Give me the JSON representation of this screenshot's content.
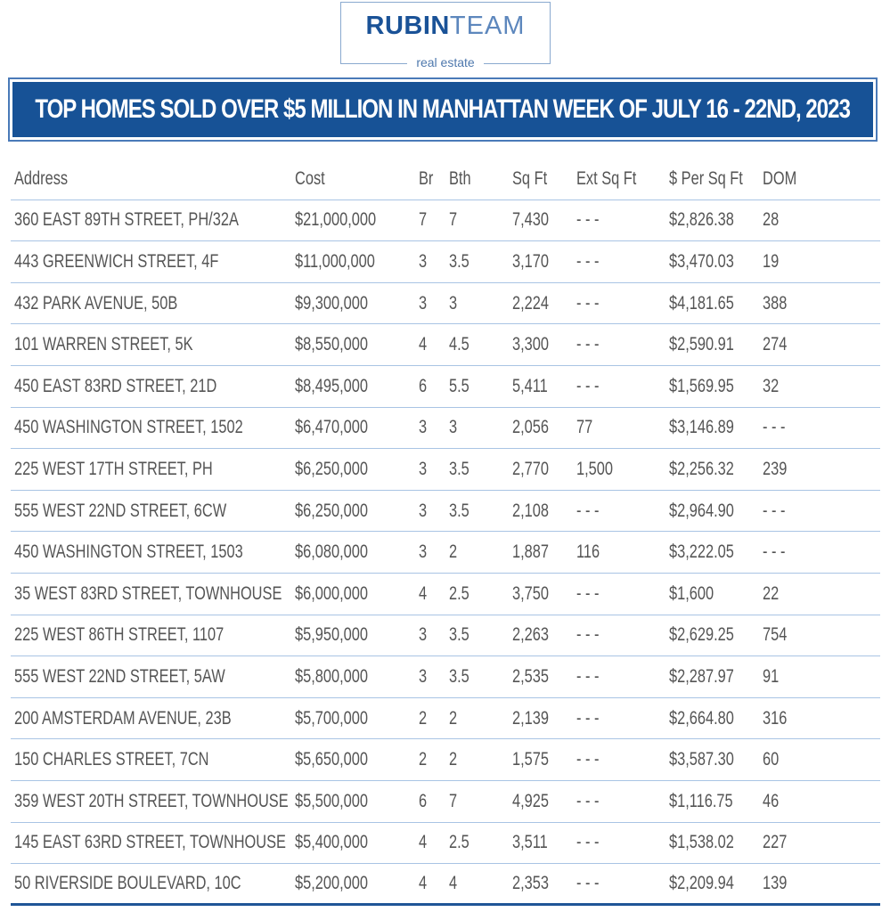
{
  "logo": {
    "brand_bold": "RUBIN",
    "brand_light": "TEAM",
    "subtitle": "real estate"
  },
  "banner": {
    "title": "TOP HOMES SOLD OVER $5 MILLION IN MANHATTAN WEEK OF JULY 16 - 22ND, 2023"
  },
  "colors": {
    "brand_blue": "#175296",
    "row_line": "#a9c4e4",
    "bottom_rule": "#1f5597",
    "text": "#555555"
  },
  "table": {
    "headers": [
      "Address",
      "Cost",
      "Br",
      "Bth",
      "Sq Ft",
      "Ext Sq Ft",
      "$ Per Sq Ft",
      "DOM"
    ],
    "rows": [
      [
        "360 EAST 89TH STREET, PH/32A",
        "$21,000,000",
        "7",
        "7",
        "7,430",
        "- - -",
        "$2,826.38",
        "28"
      ],
      [
        "443 GREENWICH STREET, 4F",
        "$11,000,000",
        "3",
        "3.5",
        "3,170",
        "- - -",
        "$3,470.03",
        "19"
      ],
      [
        "432 PARK AVENUE, 50B",
        "$9,300,000",
        "3",
        "3",
        "2,224",
        "- - -",
        "$4,181.65",
        "388"
      ],
      [
        "101 WARREN STREET, 5K",
        "$8,550,000",
        "4",
        "4.5",
        "3,300",
        "- - -",
        "$2,590.91",
        "274"
      ],
      [
        "450 EAST 83RD STREET, 21D",
        "$8,495,000",
        "6",
        "5.5",
        "5,411",
        "- - -",
        "$1,569.95",
        "32"
      ],
      [
        "450 WASHINGTON STREET, 1502",
        "$6,470,000",
        "3",
        "3",
        "2,056",
        "77",
        "$3,146.89",
        "- - -"
      ],
      [
        "225 WEST 17TH STREET, PH",
        "$6,250,000",
        "3",
        "3.5",
        "2,770",
        "1,500",
        "$2,256.32",
        "239"
      ],
      [
        "555 WEST 22ND STREET, 6CW",
        "$6,250,000",
        "3",
        "3.5",
        "2,108",
        "- - -",
        "$2,964.90",
        "- - -"
      ],
      [
        "450 WASHINGTON STREET, 1503",
        "$6,080,000",
        "3",
        "2",
        "1,887",
        "116",
        "$3,222.05",
        "- - -"
      ],
      [
        "35 WEST 83RD STREET, TOWNHOUSE",
        "$6,000,000",
        "4",
        "2.5",
        "3,750",
        "- - -",
        "$1,600",
        "22"
      ],
      [
        "225 WEST 86TH STREET, 1107",
        "$5,950,000",
        "3",
        "3.5",
        "2,263",
        "- - -",
        "$2,629.25",
        "754"
      ],
      [
        "555 WEST 22ND STREET, 5AW",
        "$5,800,000",
        "3",
        "3.5",
        "2,535",
        "- - -",
        "$2,287.97",
        "91"
      ],
      [
        "200 AMSTERDAM AVENUE, 23B",
        "$5,700,000",
        "2",
        "2",
        "2,139",
        "- - -",
        "$2,664.80",
        "316"
      ],
      [
        "150 CHARLES STREET, 7CN",
        "$5,650,000",
        "2",
        "2",
        "1,575",
        "- - -",
        "$3,587.30",
        "60"
      ],
      [
        "359 WEST 20TH STREET, TOWNHOUSE",
        "$5,500,000",
        "6",
        "7",
        "4,925",
        "- - -",
        "$1,116.75",
        "46"
      ],
      [
        "145 EAST 63RD STREET, TOWNHOUSE",
        "$5,400,000",
        "4",
        "2.5",
        "3,511",
        "- - -",
        "$1,538.02",
        "227"
      ],
      [
        "50 RIVERSIDE BOULEVARD, 10C",
        "$5,200,000",
        "4",
        "4",
        "2,353",
        "- - -",
        "$2,209.94",
        "139"
      ]
    ]
  }
}
